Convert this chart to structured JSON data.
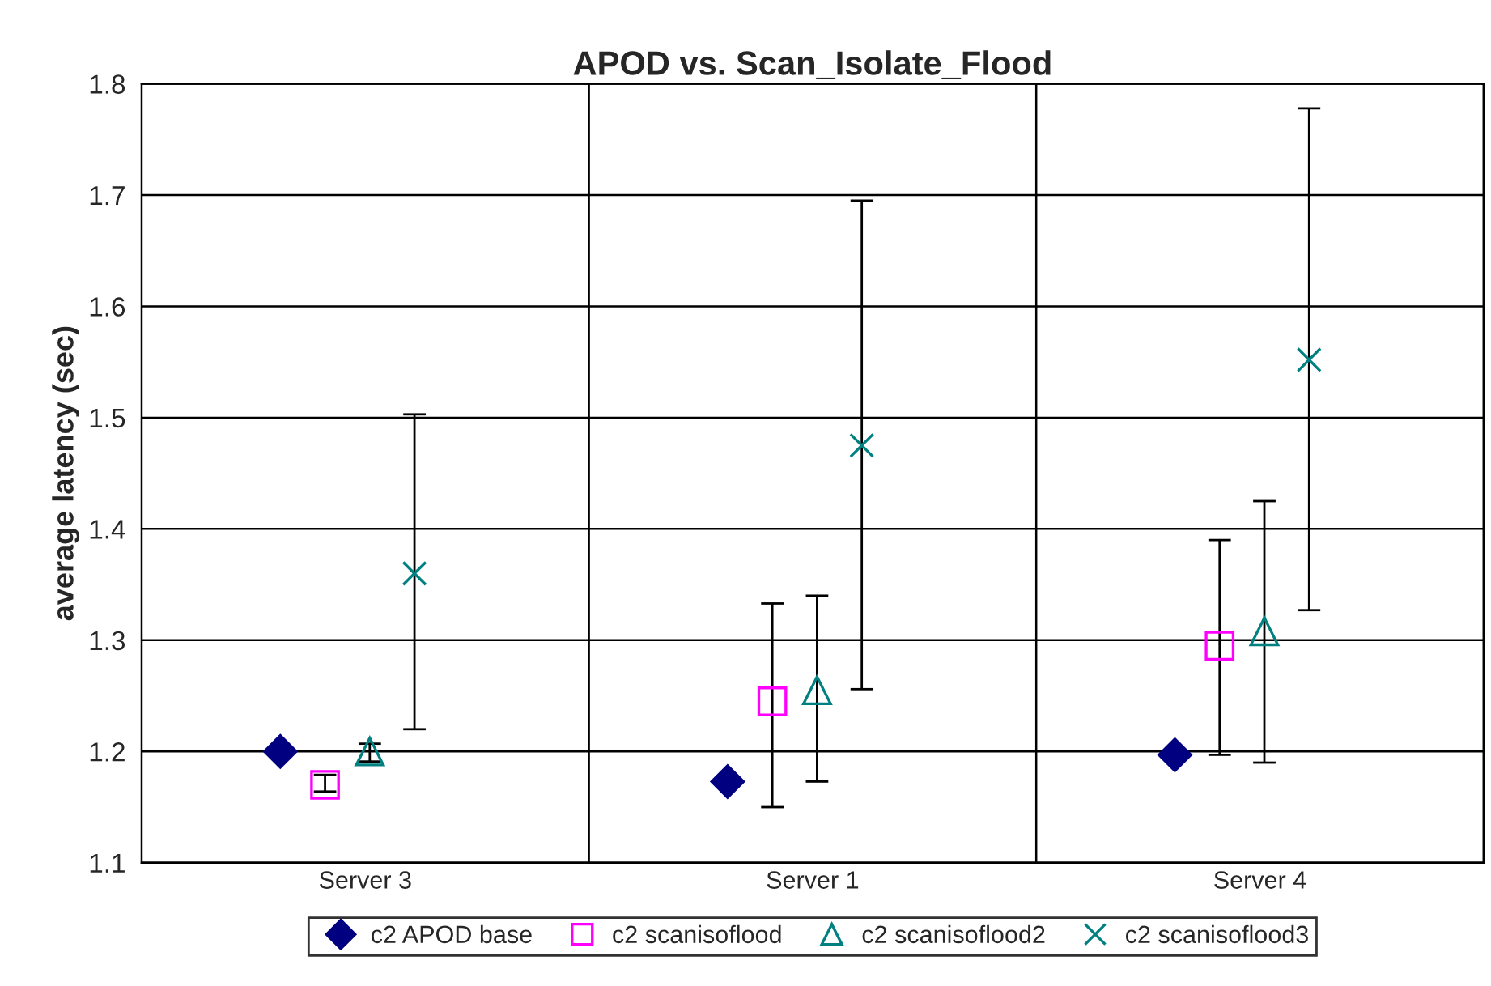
{
  "chart_data": {
    "type": "scatter",
    "title": "APOD vs. Scan_Isolate_Flood",
    "ylabel": "average latency (sec)",
    "categories": [
      "Server 3",
      "Server 1",
      "Server 4"
    ],
    "ylim": [
      1.1,
      1.8
    ],
    "yticks": [
      1.1,
      1.2,
      1.3,
      1.4,
      1.5,
      1.6,
      1.7,
      1.8
    ],
    "grid": true,
    "legend": "bottom",
    "series": [
      {
        "name": "c2 APOD base",
        "color": "#000080",
        "marker": "diamond",
        "values": [
          1.2,
          1.173,
          1.197
        ],
        "errors": [
          null,
          null,
          null
        ]
      },
      {
        "name": "c2 scanisoflood",
        "color": "#ff00ff",
        "marker": "square",
        "values": [
          1.17,
          1.245,
          1.295
        ],
        "errors": [
          [
            1.164,
            1.179
          ],
          [
            1.15,
            1.333
          ],
          [
            1.197,
            1.39
          ]
        ]
      },
      {
        "name": "c2 scanisoflood2",
        "color": "#008080",
        "marker": "triangle",
        "values": [
          1.2,
          1.255,
          1.308
        ],
        "errors": [
          [
            1.191,
            1.207
          ],
          [
            1.173,
            1.34
          ],
          [
            1.19,
            1.425
          ]
        ]
      },
      {
        "name": "c2 scanisoflood3",
        "color": "#008080",
        "marker": "cross",
        "values": [
          1.36,
          1.475,
          1.552
        ],
        "errors": [
          [
            1.22,
            1.503
          ],
          [
            1.256,
            1.695
          ],
          [
            1.327,
            1.778
          ]
        ]
      }
    ]
  }
}
